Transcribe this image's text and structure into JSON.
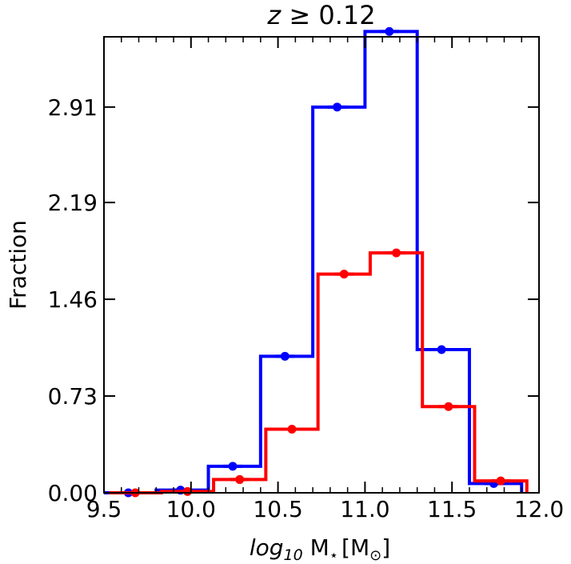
{
  "chart_data": {
    "type": "histogram",
    "title_var": "z",
    "title_rest": " ≥ 0.12",
    "xlabel_log": "log",
    "xlabel_sub": "10",
    "xlabel_M": " M",
    "xlabel_star": "⋆",
    "xlabel_unit_open": "[M",
    "xlabel_sun": "⊙",
    "xlabel_unit_close": "]",
    "ylabel": "Fraction",
    "xlim": [
      9.5,
      12.0
    ],
    "ylim": [
      0.0,
      3.44
    ],
    "x_ticks": [
      "9.5",
      "10.0",
      "10.5",
      "11.0",
      "11.5",
      "12.0"
    ],
    "x_tick_values": [
      9.5,
      10.0,
      10.5,
      11.0,
      11.5,
      12.0
    ],
    "y_ticks": [
      "0.00",
      "0.73",
      "1.46",
      "2.19",
      "2.91"
    ],
    "y_tick_values": [
      0.0,
      0.73,
      1.46,
      2.19,
      2.91
    ],
    "x_minor_ticks": [
      9.6,
      9.7,
      9.8,
      9.9,
      10.1,
      10.2,
      10.3,
      10.4,
      10.6,
      10.7,
      10.8,
      10.9,
      11.1,
      11.2,
      11.3,
      11.4,
      11.6,
      11.7,
      11.8,
      11.9
    ],
    "series": [
      {
        "color": "#0000ff",
        "bin_edges": [
          9.5,
          9.8,
          10.1,
          10.4,
          10.7,
          11.0,
          11.3,
          11.6,
          11.9
        ],
        "values": [
          0.0,
          0.02,
          0.2,
          1.03,
          2.91,
          3.48,
          1.08,
          0.07
        ],
        "point_x": [
          9.64,
          9.94,
          10.24,
          10.54,
          10.84,
          11.14,
          11.44,
          11.74
        ],
        "errors": [
          0.0,
          0.01,
          0.01,
          0.02,
          0.03,
          0.03,
          0.02,
          0.01
        ]
      },
      {
        "color": "#ff0000",
        "bin_edges": [
          9.53,
          9.83,
          10.13,
          10.43,
          10.73,
          11.03,
          11.33,
          11.63,
          11.93
        ],
        "values": [
          0.0,
          0.01,
          0.1,
          0.48,
          1.65,
          1.81,
          0.65,
          0.09
        ],
        "point_x": [
          9.68,
          9.98,
          10.28,
          10.58,
          10.88,
          11.18,
          11.48,
          11.78
        ],
        "errors": [
          0.0,
          0.005,
          0.01,
          0.02,
          0.03,
          0.03,
          0.02,
          0.01
        ]
      }
    ]
  }
}
